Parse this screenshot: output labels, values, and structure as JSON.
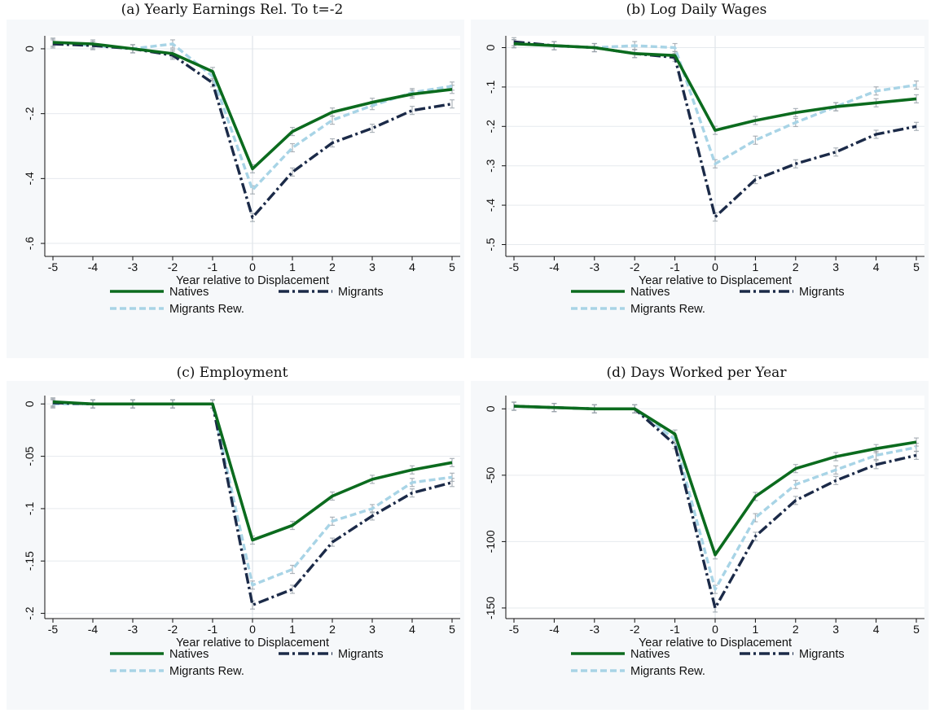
{
  "styles": {
    "natives_color": "#0b6b1e",
    "migrants_color": "#1b2a48",
    "reweighted_color": "#a8d4e6",
    "ci_color": "#9aa3ab",
    "grid_color": "#e6eaee",
    "panel_bg": "#ffffff",
    "outer_bg": "#f6f8fa"
  },
  "chart_data": [
    {
      "type": "line",
      "title": "(a) Yearly Earnings Rel. To t=-2",
      "xlabel": "Year relative to Displacement",
      "ylabel": "",
      "x": [
        -5,
        -4,
        -3,
        -2,
        -1,
        0,
        1,
        2,
        3,
        4,
        5
      ],
      "xticks": [
        "-5",
        "-4",
        "-3",
        "-2",
        "-1",
        "0",
        "1",
        "2",
        "3",
        "4",
        "5"
      ],
      "ylim": [
        -0.64,
        0.04
      ],
      "yticks": [
        0,
        -0.2,
        -0.4,
        -0.6
      ],
      "ytick_labels": [
        "0",
        "-.2",
        "-.4",
        "-.6"
      ],
      "vline_x": 0,
      "grid": true,
      "legend": "bottom",
      "series": [
        {
          "name": "Natives",
          "values": [
            0.02,
            0.015,
            0.0,
            -0.015,
            -0.07,
            -0.37,
            -0.255,
            -0.195,
            -0.165,
            -0.14,
            -0.125
          ]
        },
        {
          "name": "Migrants",
          "values": [
            0.015,
            0.01,
            0.0,
            -0.02,
            -0.105,
            -0.52,
            -0.38,
            -0.29,
            -0.245,
            -0.19,
            -0.17
          ]
        },
        {
          "name": "Migrants Rew.",
          "values": [
            0.02,
            0.01,
            0.0,
            0.015,
            -0.085,
            -0.435,
            -0.305,
            -0.22,
            -0.175,
            -0.135,
            -0.115
          ]
        }
      ]
    },
    {
      "type": "line",
      "title": "(b) Log Daily Wages",
      "xlabel": "Year relative to Displacement",
      "ylabel": "",
      "x": [
        -5,
        -4,
        -3,
        -2,
        -1,
        0,
        1,
        2,
        3,
        4,
        5
      ],
      "xticks": [
        "-5",
        "-4",
        "-3",
        "-2",
        "-1",
        "0",
        "1",
        "2",
        "3",
        "4",
        "5"
      ],
      "ylim": [
        -0.53,
        0.03
      ],
      "yticks": [
        0,
        -0.1,
        -0.2,
        -0.3,
        -0.4,
        -0.5
      ],
      "ytick_labels": [
        "0",
        "-.1",
        "-.2",
        "-.3",
        "-.4",
        "-.5"
      ],
      "vline_x": 0,
      "grid": true,
      "legend": "bottom",
      "series": [
        {
          "name": "Natives",
          "values": [
            0.01,
            0.005,
            0.0,
            -0.015,
            -0.02,
            -0.21,
            -0.185,
            -0.165,
            -0.15,
            -0.14,
            -0.13
          ]
        },
        {
          "name": "Migrants",
          "values": [
            0.015,
            0.005,
            0.0,
            -0.015,
            -0.025,
            -0.43,
            -0.335,
            -0.295,
            -0.265,
            -0.22,
            -0.2
          ]
        },
        {
          "name": "Migrants Rew.",
          "values": [
            0.01,
            0.005,
            0.0,
            0.005,
            0.0,
            -0.295,
            -0.235,
            -0.19,
            -0.15,
            -0.11,
            -0.095
          ]
        }
      ]
    },
    {
      "type": "line",
      "title": "(c) Employment",
      "xlabel": "Year relative to Displacement",
      "ylabel": "",
      "x": [
        -5,
        -4,
        -3,
        -2,
        -1,
        0,
        1,
        2,
        3,
        4,
        5
      ],
      "xticks": [
        "-5",
        "-4",
        "-3",
        "-2",
        "-1",
        "0",
        "1",
        "2",
        "3",
        "4",
        "5"
      ],
      "ylim": [
        -0.205,
        0.008
      ],
      "yticks": [
        0,
        -0.05,
        -0.1,
        -0.15,
        -0.2
      ],
      "ytick_labels": [
        "0",
        "-.05",
        "-.1",
        "-.15",
        "-.2"
      ],
      "vline_x": 0,
      "grid": true,
      "legend": "bottom",
      "series": [
        {
          "name": "Natives",
          "values": [
            0.002,
            0.0,
            0.0,
            0.0,
            0.0,
            -0.13,
            -0.116,
            -0.088,
            -0.072,
            -0.063,
            -0.056
          ]
        },
        {
          "name": "Migrants",
          "values": [
            0.001,
            0.0,
            0.0,
            0.0,
            0.0,
            -0.192,
            -0.177,
            -0.132,
            -0.107,
            -0.085,
            -0.075
          ]
        },
        {
          "name": "Migrants Rew.",
          "values": [
            0.0,
            0.0,
            0.0,
            0.0,
            0.0,
            -0.173,
            -0.158,
            -0.112,
            -0.1,
            -0.075,
            -0.07
          ]
        }
      ]
    },
    {
      "type": "line",
      "title": "(d) Days Worked per Year",
      "xlabel": "Year relative to Displacement",
      "ylabel": "",
      "x": [
        -5,
        -4,
        -3,
        -2,
        -1,
        0,
        1,
        2,
        3,
        4,
        5
      ],
      "xticks": [
        "-5",
        "-4",
        "-3",
        "-2",
        "-1",
        "0",
        "1",
        "2",
        "3",
        "4",
        "5"
      ],
      "ylim": [
        -158,
        10
      ],
      "yticks": [
        0,
        -50,
        -100,
        -150
      ],
      "ytick_labels": [
        "0",
        "-50",
        "-100",
        "-150"
      ],
      "vline_x": 0,
      "grid": true,
      "legend": "bottom",
      "series": [
        {
          "name": "Natives",
          "values": [
            2,
            1,
            0,
            0,
            -19,
            -110,
            -66,
            -45,
            -36,
            -30,
            -25
          ]
        },
        {
          "name": "Migrants",
          "values": [
            2,
            1,
            0,
            0,
            -27,
            -150,
            -96,
            -69,
            -54,
            -42,
            -35
          ]
        },
        {
          "name": "Migrants Rew.",
          "values": [
            2,
            1,
            0,
            0,
            -23,
            -136,
            -82,
            -57,
            -46,
            -35,
            -29
          ]
        }
      ]
    }
  ]
}
